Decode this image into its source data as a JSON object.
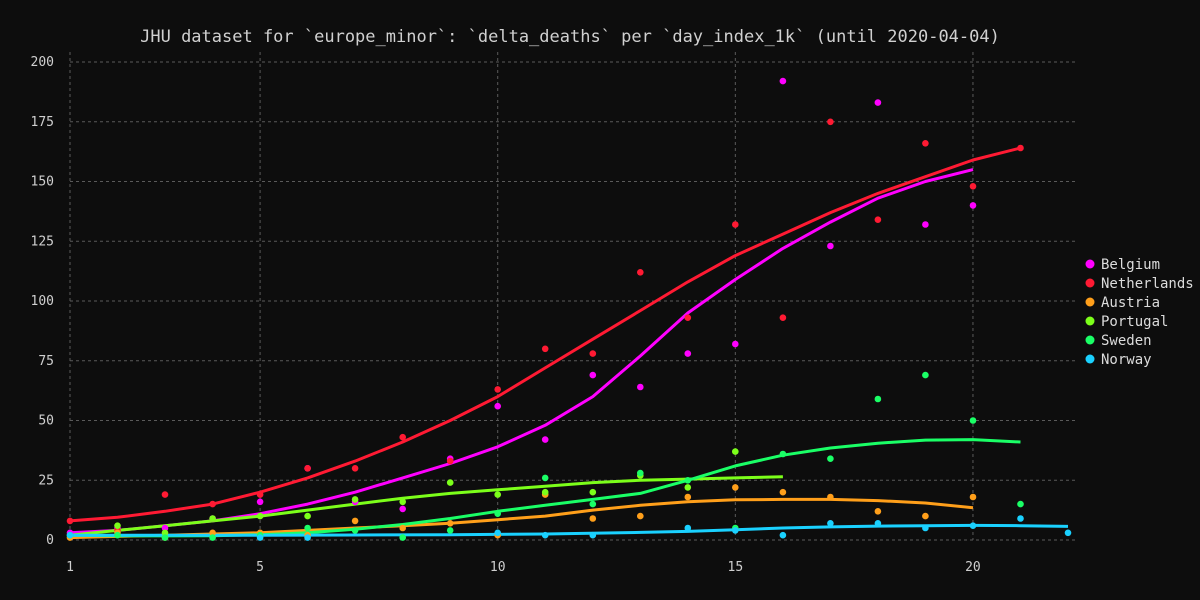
{
  "chart_data": {
    "type": "scatter",
    "title": "JHU dataset for `europe_minor`: `delta_deaths` per `day_index_1k` (until 2020-04-04)",
    "xlabel": "",
    "ylabel": "",
    "xlim": [
      1,
      22
    ],
    "ylim": [
      0,
      200
    ],
    "xticks": [
      1,
      5,
      10,
      15,
      20
    ],
    "yticks": [
      0,
      25,
      50,
      75,
      100,
      125,
      150,
      175,
      200
    ],
    "grid": true,
    "legend_position": "right",
    "series": [
      {
        "name": "Belgium",
        "color": "#ff00ff",
        "points": [
          [
            1,
            3
          ],
          [
            2,
            5
          ],
          [
            3,
            5
          ],
          [
            4,
            9
          ],
          [
            5,
            16
          ],
          [
            6,
            30
          ],
          [
            7,
            16
          ],
          [
            8,
            13
          ],
          [
            9,
            34
          ],
          [
            10,
            56
          ],
          [
            11,
            42
          ],
          [
            12,
            69
          ],
          [
            13,
            64
          ],
          [
            14,
            78
          ],
          [
            15,
            82
          ],
          [
            16,
            192
          ],
          [
            17,
            123
          ],
          [
            18,
            183
          ],
          [
            19,
            132
          ],
          [
            20,
            140
          ]
        ],
        "trend": [
          [
            1,
            3
          ],
          [
            2,
            4
          ],
          [
            3,
            6
          ],
          [
            4,
            8
          ],
          [
            5,
            11
          ],
          [
            6,
            15
          ],
          [
            7,
            20
          ],
          [
            8,
            26
          ],
          [
            9,
            32
          ],
          [
            10,
            39
          ],
          [
            11,
            48
          ],
          [
            12,
            60
          ],
          [
            13,
            77
          ],
          [
            14,
            95
          ],
          [
            15,
            109
          ],
          [
            16,
            122
          ],
          [
            17,
            133
          ],
          [
            18,
            143
          ],
          [
            19,
            150
          ],
          [
            20,
            155
          ]
        ]
      },
      {
        "name": "Netherlands",
        "color": "#ff1a33",
        "points": [
          [
            1,
            8
          ],
          [
            2,
            4
          ],
          [
            3,
            19
          ],
          [
            4,
            15
          ],
          [
            5,
            19
          ],
          [
            6,
            30
          ],
          [
            7,
            30
          ],
          [
            8,
            43
          ],
          [
            9,
            33
          ],
          [
            10,
            63
          ],
          [
            11,
            80
          ],
          [
            12,
            78
          ],
          [
            13,
            112
          ],
          [
            14,
            93
          ],
          [
            15,
            132
          ],
          [
            16,
            93
          ],
          [
            17,
            175
          ],
          [
            18,
            134
          ],
          [
            19,
            166
          ],
          [
            20,
            148
          ],
          [
            21,
            164
          ]
        ],
        "trend": [
          [
            1,
            8
          ],
          [
            2,
            9.5
          ],
          [
            3,
            12
          ],
          [
            4,
            15
          ],
          [
            5,
            20
          ],
          [
            6,
            26
          ],
          [
            7,
            33
          ],
          [
            8,
            41
          ],
          [
            9,
            50
          ],
          [
            10,
            60
          ],
          [
            11,
            72
          ],
          [
            12,
            84
          ],
          [
            13,
            96
          ],
          [
            14,
            108
          ],
          [
            15,
            119
          ],
          [
            16,
            128
          ],
          [
            17,
            137
          ],
          [
            18,
            145
          ],
          [
            19,
            152
          ],
          [
            20,
            159
          ],
          [
            21,
            164
          ]
        ]
      },
      {
        "name": "Austria",
        "color": "#ff9f1a",
        "points": [
          [
            1,
            1
          ],
          [
            2,
            3
          ],
          [
            3,
            1
          ],
          [
            4,
            3
          ],
          [
            5,
            3
          ],
          [
            6,
            2
          ],
          [
            7,
            8
          ],
          [
            8,
            5
          ],
          [
            9,
            7
          ],
          [
            10,
            2
          ],
          [
            11,
            19
          ],
          [
            12,
            9
          ],
          [
            13,
            10
          ],
          [
            14,
            18
          ],
          [
            15,
            22
          ],
          [
            16,
            20
          ],
          [
            17,
            18
          ],
          [
            18,
            12
          ],
          [
            19,
            10
          ],
          [
            20,
            18
          ]
        ],
        "trend": [
          [
            1,
            1
          ],
          [
            2,
            1.5
          ],
          [
            3,
            2
          ],
          [
            4,
            2.5
          ],
          [
            5,
            3
          ],
          [
            6,
            4
          ],
          [
            7,
            5
          ],
          [
            8,
            6
          ],
          [
            9,
            7
          ],
          [
            10,
            8.5
          ],
          [
            11,
            10
          ],
          [
            12,
            12.5
          ],
          [
            13,
            14.5
          ],
          [
            14,
            16
          ],
          [
            15,
            16.8
          ],
          [
            16,
            17
          ],
          [
            17,
            17
          ],
          [
            18,
            16.5
          ],
          [
            19,
            15.5
          ],
          [
            20,
            13.5
          ]
        ]
      },
      {
        "name": "Portugal",
        "color": "#7cff1a",
        "points": [
          [
            2,
            6
          ],
          [
            3,
            3
          ],
          [
            4,
            9
          ],
          [
            5,
            10
          ],
          [
            6,
            10
          ],
          [
            7,
            17
          ],
          [
            8,
            16
          ],
          [
            9,
            24
          ],
          [
            10,
            19
          ],
          [
            11,
            20
          ],
          [
            12,
            20
          ],
          [
            13,
            27
          ],
          [
            14,
            22
          ],
          [
            15,
            37
          ]
        ],
        "trend": [
          [
            1,
            2
          ],
          [
            2,
            4
          ],
          [
            3,
            6
          ],
          [
            4,
            8
          ],
          [
            5,
            10
          ],
          [
            6,
            12.5
          ],
          [
            7,
            15
          ],
          [
            8,
            17.5
          ],
          [
            9,
            19.5
          ],
          [
            10,
            21
          ],
          [
            11,
            22.5
          ],
          [
            12,
            24
          ],
          [
            13,
            25
          ],
          [
            14,
            25.5
          ],
          [
            15,
            26
          ],
          [
            16,
            26.5
          ]
        ]
      },
      {
        "name": "Sweden",
        "color": "#1aff66",
        "points": [
          [
            1,
            2
          ],
          [
            2,
            2
          ],
          [
            3,
            1
          ],
          [
            4,
            1
          ],
          [
            5,
            2
          ],
          [
            6,
            5
          ],
          [
            7,
            4
          ],
          [
            8,
            1
          ],
          [
            9,
            4
          ],
          [
            10,
            11
          ],
          [
            11,
            26
          ],
          [
            12,
            15
          ],
          [
            13,
            28
          ],
          [
            14,
            25
          ],
          [
            15,
            5
          ],
          [
            16,
            36
          ],
          [
            17,
            34
          ],
          [
            18,
            59
          ],
          [
            19,
            69
          ],
          [
            20,
            50
          ],
          [
            21,
            15
          ]
        ],
        "trend": [
          [
            1,
            2
          ],
          [
            2,
            1.8
          ],
          [
            3,
            1.7
          ],
          [
            4,
            1.8
          ],
          [
            5,
            2.2
          ],
          [
            6,
            3
          ],
          [
            7,
            4.5
          ],
          [
            8,
            6.5
          ],
          [
            9,
            9
          ],
          [
            10,
            12
          ],
          [
            11,
            14.5
          ],
          [
            12,
            17
          ],
          [
            13,
            19.5
          ],
          [
            14,
            25
          ],
          [
            15,
            31
          ],
          [
            16,
            35.5
          ],
          [
            17,
            38.5
          ],
          [
            18,
            40.5
          ],
          [
            19,
            41.8
          ],
          [
            20,
            42
          ],
          [
            21,
            41
          ]
        ]
      },
      {
        "name": "Norway",
        "color": "#1ad1ff",
        "points": [
          [
            1,
            2
          ],
          [
            5,
            1
          ],
          [
            6,
            1
          ],
          [
            10,
            3
          ],
          [
            11,
            2
          ],
          [
            12,
            2
          ],
          [
            14,
            5
          ],
          [
            15,
            4
          ],
          [
            16,
            2
          ],
          [
            17,
            7
          ],
          [
            18,
            7
          ],
          [
            19,
            5
          ],
          [
            20,
            6
          ],
          [
            21,
            9
          ],
          [
            22,
            3
          ]
        ],
        "trend": [
          [
            1,
            2
          ],
          [
            3,
            2
          ],
          [
            5,
            2
          ],
          [
            7,
            2.1
          ],
          [
            9,
            2.2
          ],
          [
            11,
            2.5
          ],
          [
            13,
            3.2
          ],
          [
            14,
            3.6
          ],
          [
            15,
            4.3
          ],
          [
            16,
            5
          ],
          [
            17,
            5.5
          ],
          [
            18,
            5.8
          ],
          [
            19,
            6
          ],
          [
            20,
            6.1
          ],
          [
            21,
            6
          ],
          [
            22,
            5.7
          ]
        ]
      }
    ]
  }
}
